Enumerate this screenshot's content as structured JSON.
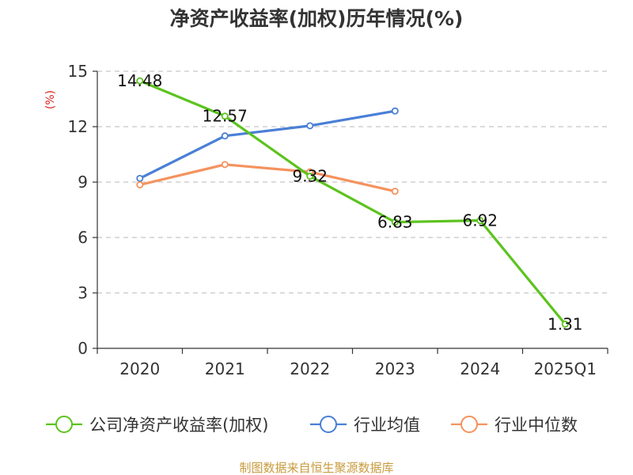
{
  "chart_data": {
    "type": "line",
    "title": "净资产收益率(加权)历年情况(%)",
    "ylabel": "(%)",
    "categories": [
      "2020",
      "2021",
      "2022",
      "2023",
      "2024",
      "2025Q1"
    ],
    "ylim": [
      0,
      15
    ],
    "yticks": [
      0,
      3,
      6,
      9,
      12,
      15
    ],
    "grid": "horizontal dashed",
    "legend_position": "bottom",
    "series": [
      {
        "name": "公司净资产收益率(加权)",
        "color": "#5cc31e",
        "values": [
          14.48,
          12.57,
          9.32,
          6.83,
          6.92,
          1.31
        ],
        "labels": [
          "14.48",
          "12.57",
          "9.32",
          "6.83",
          "6.92",
          "1.31"
        ]
      },
      {
        "name": "行业均值",
        "color": "#4a7fd6",
        "values": [
          9.2,
          11.5,
          12.05,
          12.85,
          null,
          null
        ]
      },
      {
        "name": "行业中位数",
        "color": "#f5925e",
        "values": [
          8.85,
          9.95,
          9.55,
          8.5,
          null,
          null
        ]
      }
    ]
  },
  "source": "制图数据来自恒生聚源数据库"
}
